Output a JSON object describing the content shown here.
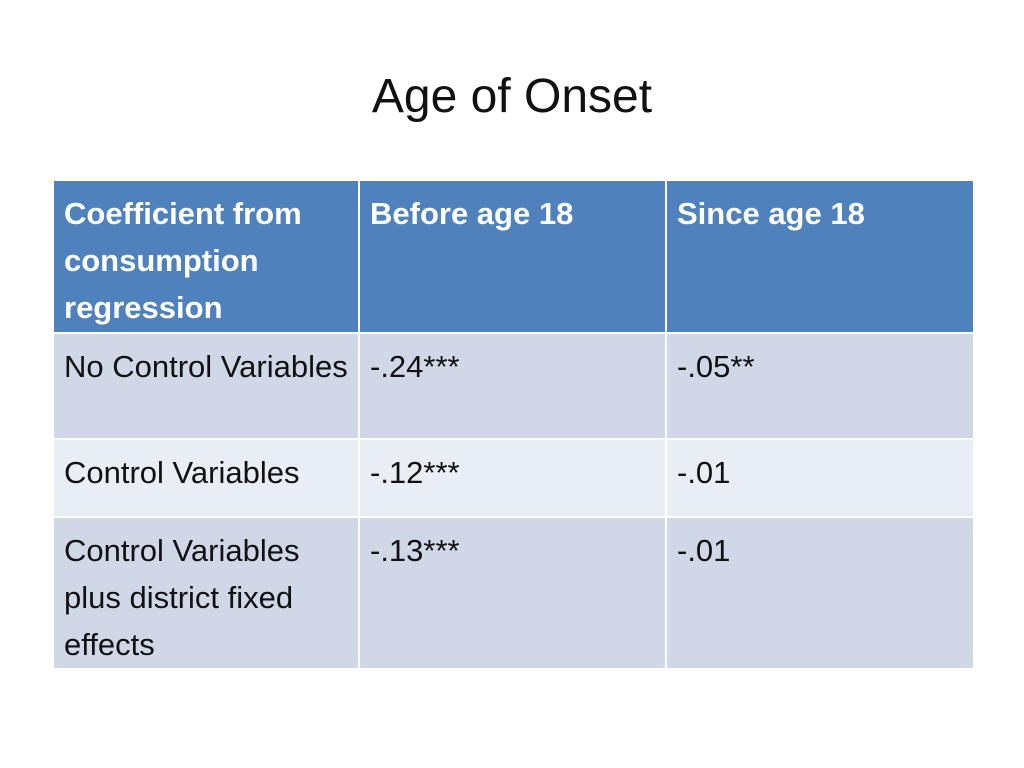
{
  "slide": {
    "title": "Age of Onset"
  },
  "table": {
    "headers": [
      "Coefficient from consumption regression",
      "Before age 18",
      "Since age 18"
    ],
    "rows": [
      {
        "label": "No Control Variables",
        "before": "-.24***",
        "since": "-.05**"
      },
      {
        "label": "Control Variables",
        "before": "-.12***",
        "since": "-.01"
      },
      {
        "label": "Control Variables plus district fixed effects",
        "before": "-.13***",
        "since": "-.01"
      }
    ]
  },
  "colors": {
    "header_background": "#4f81bd",
    "row_band_dark": "#d0d8e8",
    "row_band_light": "#e9edf4",
    "header_text": "#ffffff",
    "body_text": "#111111"
  }
}
